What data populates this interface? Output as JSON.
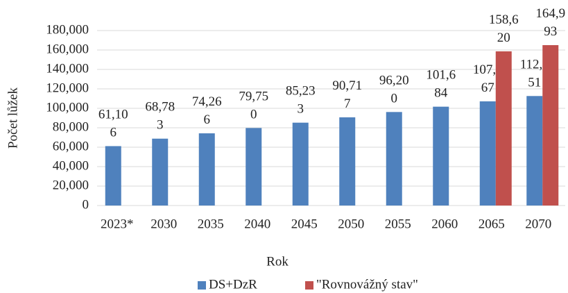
{
  "chart_data": {
    "type": "bar",
    "categories": [
      "2023*",
      "2030",
      "2035",
      "2040",
      "2045",
      "2050",
      "2055",
      "2060",
      "2065",
      "2070"
    ],
    "series": [
      {
        "name": "DS+DzR",
        "color": "#4f81bd",
        "values": [
          61106,
          68783,
          74266,
          79750,
          85233,
          90717,
          96200,
          101684,
          107167,
          112651
        ],
        "value_labels": [
          "61,106",
          "68,783",
          "74,266",
          "79,750",
          "85,233",
          "90,717",
          "96,200",
          "101,684",
          "107,167",
          "112,651"
        ]
      },
      {
        "name": "\"Rovnovážný stav\"",
        "color": "#c0504d",
        "values": [
          null,
          null,
          null,
          null,
          null,
          null,
          null,
          null,
          158620,
          164993
        ],
        "value_labels": [
          null,
          null,
          null,
          null,
          null,
          null,
          null,
          null,
          "158,620",
          "164,993"
        ]
      }
    ],
    "x_label": "Rok",
    "y_label": "Počet lůžek",
    "ylim": [
      0,
      180000
    ],
    "yticks": [
      0,
      {
        "value": 20000,
        "label": "20,000"
      },
      {
        "value": 40000,
        "label": "40,000"
      },
      {
        "value": 60000,
        "label": "60,000"
      },
      {
        "value": 80000,
        "label": "80,000"
      },
      {
        "value": 100000,
        "label": "100,000"
      },
      {
        "value": 120000,
        "label": "120,000"
      },
      {
        "value": 140000,
        "label": "140,000"
      },
      {
        "value": 160000,
        "label": "160,000"
      },
      {
        "value": 180000,
        "label": "180,000"
      }
    ],
    "grid": true,
    "legend": "bottom"
  }
}
